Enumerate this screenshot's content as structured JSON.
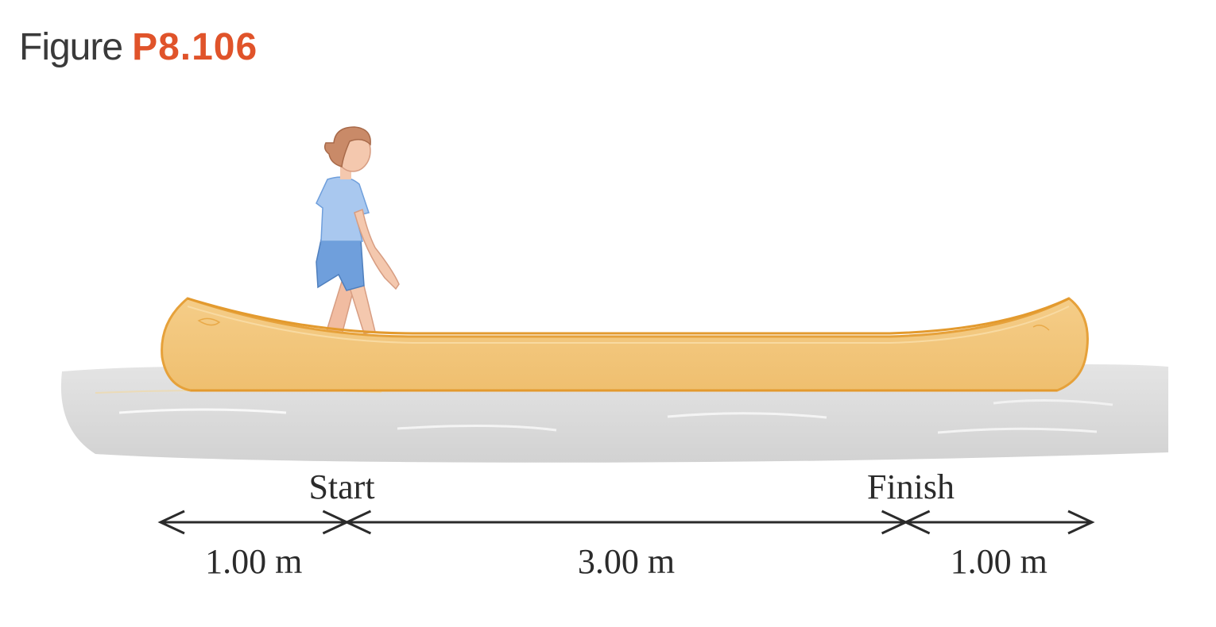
{
  "figure": {
    "label": "Figure",
    "number": "P8.106",
    "number_color": "#e0532a"
  },
  "markers": {
    "start": "Start",
    "finish": "Finish"
  },
  "dimensions": [
    {
      "label": "1.00 m",
      "length_m": 1.0
    },
    {
      "label": "3.00 m",
      "length_m": 3.0
    },
    {
      "label": "1.00 m",
      "length_m": 1.0
    }
  ],
  "colors": {
    "canoe": "#f2c67e",
    "canoe_edge": "#e6a13a",
    "water": "#dcdcdc",
    "shirt": "#a9c8ef",
    "shorts": "#6f9fdc",
    "hair": "#c98a68",
    "skin": "#f4c8ae",
    "arrow": "#2b2b2b"
  }
}
